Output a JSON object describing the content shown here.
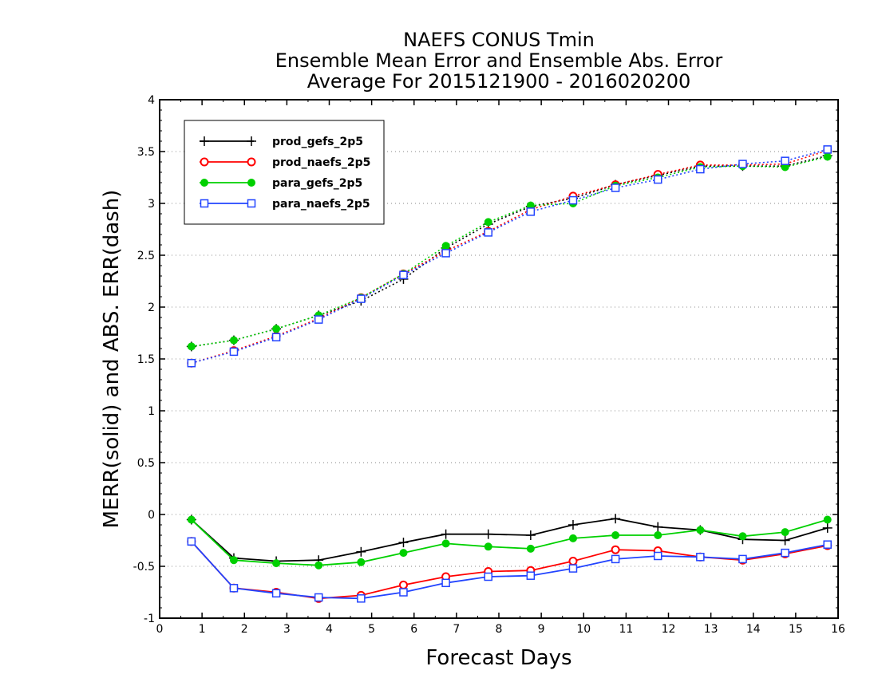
{
  "chart_data": {
    "type": "line",
    "title": [
      "NAEFS CONUS Tmin",
      "Ensemble Mean Error and Ensemble Abs. Error",
      "Average For 2015121900 - 2016020200"
    ],
    "xlabel": "Forecast Days",
    "ylabel": "MERR(solid) and ABS. ERR(dash)",
    "xlim": [
      0,
      16
    ],
    "ylim": [
      -1,
      4
    ],
    "xticks": [
      "0",
      "1",
      "2",
      "3",
      "4",
      "5",
      "6",
      "7",
      "8",
      "9",
      "10",
      "11",
      "12",
      "13",
      "14",
      "15",
      "16"
    ],
    "yticks": [
      "-1",
      "-0.5",
      "0",
      "0.5",
      "1",
      "1.5",
      "2",
      "2.5",
      "3",
      "3.5",
      "4"
    ],
    "grid": "horizontal dotted",
    "legend_position": "top-left",
    "x": [
      0.75,
      1.75,
      2.75,
      3.75,
      4.75,
      5.75,
      6.75,
      7.75,
      8.75,
      9.75,
      10.75,
      11.75,
      12.75,
      13.75,
      14.75,
      15.75
    ],
    "series": [
      {
        "name": "prod_gefs_2p5",
        "color": "#000000",
        "marker": "plus",
        "merr": [
          -0.05,
          -0.42,
          -0.45,
          -0.44,
          -0.36,
          -0.27,
          -0.19,
          -0.19,
          -0.2,
          -0.1,
          -0.04,
          -0.12,
          -0.15,
          -0.24,
          -0.25,
          -0.13
        ],
        "abs_err": [
          1.62,
          1.68,
          1.79,
          1.92,
          2.06,
          2.27,
          2.57,
          2.8,
          2.97,
          3.05,
          3.18,
          3.27,
          3.36,
          3.36,
          3.36,
          3.46
        ]
      },
      {
        "name": "prod_naefs_2p5",
        "color": "#ff0000",
        "marker": "circle",
        "merr": [
          -0.26,
          -0.71,
          -0.75,
          -0.81,
          -0.78,
          -0.68,
          -0.6,
          -0.55,
          -0.54,
          -0.45,
          -0.34,
          -0.35,
          -0.41,
          -0.44,
          -0.38,
          -0.3
        ],
        "abs_err": [
          1.46,
          1.58,
          1.72,
          1.89,
          2.09,
          2.32,
          2.54,
          2.73,
          2.94,
          3.07,
          3.18,
          3.28,
          3.37,
          3.37,
          3.38,
          3.51
        ]
      },
      {
        "name": "para_gefs_2p5",
        "color": "#00d000",
        "marker": "filled-circle",
        "merr": [
          -0.05,
          -0.44,
          -0.47,
          -0.49,
          -0.46,
          -0.37,
          -0.28,
          -0.31,
          -0.33,
          -0.23,
          -0.2,
          -0.2,
          -0.15,
          -0.21,
          -0.17,
          -0.05
        ],
        "abs_err": [
          1.62,
          1.68,
          1.79,
          1.92,
          2.09,
          2.32,
          2.59,
          2.82,
          2.98,
          3.0,
          3.17,
          3.25,
          3.35,
          3.36,
          3.35,
          3.45
        ]
      },
      {
        "name": "para_naefs_2p5",
        "color": "#2244ff",
        "marker": "square",
        "merr": [
          -0.26,
          -0.71,
          -0.76,
          -0.8,
          -0.81,
          -0.75,
          -0.66,
          -0.6,
          -0.59,
          -0.52,
          -0.43,
          -0.4,
          -0.41,
          -0.43,
          -0.37,
          -0.29
        ],
        "abs_err": [
          1.46,
          1.57,
          1.71,
          1.88,
          2.08,
          2.31,
          2.52,
          2.72,
          2.92,
          3.03,
          3.15,
          3.23,
          3.33,
          3.38,
          3.41,
          3.52
        ]
      }
    ]
  }
}
